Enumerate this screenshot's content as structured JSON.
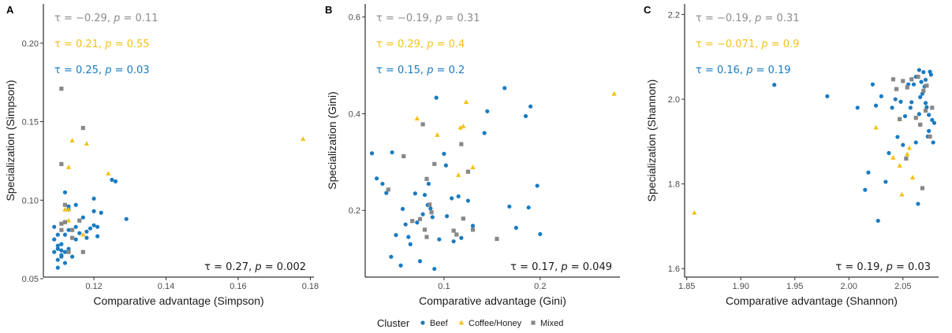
{
  "colors": {
    "Beef": "#1a7bc1",
    "Coffee/Honey": "#f2c218",
    "Mixed": "#888888",
    "stat_gray": "#8c8c8c",
    "stat_black": "#1a1a1a"
  },
  "legend": {
    "title": "Cluster",
    "items": [
      {
        "label": "Beef",
        "shape": "circle"
      },
      {
        "label": "Coffee/Honey",
        "shape": "triangle"
      },
      {
        "label": "Mixed",
        "shape": "square"
      }
    ],
    "placement": "bottom"
  },
  "chart_data": [
    {
      "type": "scatter",
      "panel": "A",
      "xlabel": "Comparative advantage (Simpson)",
      "ylabel": "Specialization (Simpson)",
      "xlim": [
        0.106,
        0.181
      ],
      "ylim": [
        0.051,
        0.225
      ],
      "xticks": [
        "0.12",
        "0.14",
        "0.16",
        "0.18"
      ],
      "yticks": [
        "0.05",
        "0.10",
        "0.15",
        "0.20"
      ],
      "stats": [
        {
          "cluster": "Mixed",
          "tau": "−0.29",
          "p": "0.11"
        },
        {
          "cluster": "Coffee/Honey",
          "tau": "0.21",
          "p": "0.55"
        },
        {
          "cluster": "Beef",
          "tau": "0.25",
          "p": "0.03"
        }
      ],
      "overall": {
        "tau": "0.27",
        "p": "0.002"
      },
      "series": [
        {
          "name": "Beef",
          "points": [
            [
              0.109,
              0.083
            ],
            [
              0.109,
              0.075
            ],
            [
              0.109,
              0.067
            ],
            [
              0.11,
              0.071
            ],
            [
              0.11,
              0.078
            ],
            [
              0.11,
              0.062
            ],
            [
              0.11,
              0.069
            ],
            [
              0.11,
              0.057
            ],
            [
              0.111,
              0.064
            ],
            [
              0.111,
              0.065
            ],
            [
              0.111,
              0.072
            ],
            [
              0.111,
              0.068
            ],
            [
              0.112,
              0.06
            ],
            [
              0.112,
              0.067
            ],
            [
              0.112,
              0.078
            ],
            [
              0.112,
              0.086
            ],
            [
              0.112,
              0.105
            ],
            [
              0.113,
              0.094
            ],
            [
              0.113,
              0.096
            ],
            [
              0.113,
              0.081
            ],
            [
              0.113,
              0.069
            ],
            [
              0.114,
              0.064
            ],
            [
              0.115,
              0.097
            ],
            [
              0.115,
              0.083
            ],
            [
              0.115,
              0.075
            ],
            [
              0.116,
              0.079
            ],
            [
              0.117,
              0.089
            ],
            [
              0.118,
              0.076
            ],
            [
              0.118,
              0.08
            ],
            [
              0.119,
              0.082
            ],
            [
              0.12,
              0.101
            ],
            [
              0.12,
              0.093
            ],
            [
              0.12,
              0.084
            ],
            [
              0.121,
              0.077
            ],
            [
              0.121,
              0.083
            ],
            [
              0.122,
              0.092
            ],
            [
              0.125,
              0.113
            ],
            [
              0.126,
              0.112
            ],
            [
              0.129,
              0.088
            ]
          ]
        },
        {
          "name": "Coffee/Honey",
          "points": [
            [
              0.112,
              0.094
            ],
            [
              0.113,
              0.087
            ],
            [
              0.113,
              0.094
            ],
            [
              0.113,
              0.121
            ],
            [
              0.114,
              0.138
            ],
            [
              0.117,
              0.078
            ],
            [
              0.118,
              0.136
            ],
            [
              0.124,
              0.117
            ],
            [
              0.178,
              0.139
            ]
          ]
        },
        {
          "name": "Mixed",
          "points": [
            [
              0.111,
              0.171
            ],
            [
              0.111,
              0.123
            ],
            [
              0.111,
              0.085
            ],
            [
              0.111,
              0.081
            ],
            [
              0.112,
              0.086
            ],
            [
              0.112,
              0.097
            ],
            [
              0.113,
              0.067
            ],
            [
              0.114,
              0.076
            ],
            [
              0.114,
              0.081
            ],
            [
              0.116,
              0.087
            ],
            [
              0.117,
              0.146
            ],
            [
              0.117,
              0.067
            ]
          ]
        }
      ]
    },
    {
      "type": "scatter",
      "panel": "B",
      "xlabel": "Comparative advantage (Gini)",
      "ylabel": "Specialization (Gini)",
      "xlim": [
        0.018,
        0.283
      ],
      "ylim": [
        0.062,
        0.627
      ],
      "xticks": [
        "0.1",
        "0.2"
      ],
      "yticks": [
        "0.2",
        "0.4",
        "0.6"
      ],
      "stats": [
        {
          "cluster": "Mixed",
          "tau": "−0.19",
          "p": "0.31"
        },
        {
          "cluster": "Coffee/Honey",
          "tau": "0.29",
          "p": "0.4"
        },
        {
          "cluster": "Beef",
          "tau": "0.15",
          "p": "0.2"
        }
      ],
      "overall": {
        "tau": "0.17",
        "p": "0.049"
      },
      "series": [
        {
          "name": "Beef",
          "points": [
            [
              0.025,
              0.318
            ],
            [
              0.03,
              0.266
            ],
            [
              0.036,
              0.255
            ],
            [
              0.04,
              0.236
            ],
            [
              0.045,
              0.104
            ],
            [
              0.046,
              0.32
            ],
            [
              0.05,
              0.149
            ],
            [
              0.055,
              0.086
            ],
            [
              0.057,
              0.203
            ],
            [
              0.06,
              0.171
            ],
            [
              0.063,
              0.145
            ],
            [
              0.065,
              0.13
            ],
            [
              0.07,
              0.235
            ],
            [
              0.072,
              0.175
            ],
            [
              0.075,
              0.095
            ],
            [
              0.078,
              0.192
            ],
            [
              0.08,
              0.232
            ],
            [
              0.083,
              0.211
            ],
            [
              0.084,
              0.255
            ],
            [
              0.086,
              0.204
            ],
            [
              0.088,
              0.186
            ],
            [
              0.09,
              0.079
            ],
            [
              0.092,
              0.433
            ],
            [
              0.095,
              0.14
            ],
            [
              0.1,
              0.317
            ],
            [
              0.102,
              0.293
            ],
            [
              0.103,
              0.188
            ],
            [
              0.108,
              0.225
            ],
            [
              0.11,
              0.136
            ],
            [
              0.115,
              0.229
            ],
            [
              0.118,
              0.143
            ],
            [
              0.125,
              0.22
            ],
            [
              0.13,
              0.168
            ],
            [
              0.142,
              0.36
            ],
            [
              0.145,
              0.405
            ],
            [
              0.163,
              0.453
            ],
            [
              0.168,
              0.208
            ],
            [
              0.175,
              0.164
            ],
            [
              0.185,
              0.395
            ],
            [
              0.188,
              0.206
            ],
            [
              0.19,
              0.415
            ],
            [
              0.197,
              0.251
            ],
            [
              0.2,
              0.151
            ]
          ]
        },
        {
          "name": "Coffee/Honey",
          "points": [
            [
              0.072,
              0.39
            ],
            [
              0.093,
              0.356
            ],
            [
              0.115,
              0.273
            ],
            [
              0.117,
              0.371
            ],
            [
              0.12,
              0.374
            ],
            [
              0.123,
              0.424
            ],
            [
              0.13,
              0.289
            ],
            [
              0.277,
              0.441
            ]
          ]
        },
        {
          "name": "Mixed",
          "points": [
            [
              0.042,
              0.243
            ],
            [
              0.058,
              0.312
            ],
            [
              0.067,
              0.178
            ],
            [
              0.075,
              0.182
            ],
            [
              0.078,
              0.378
            ],
            [
              0.08,
              0.16
            ],
            [
              0.082,
              0.265
            ],
            [
              0.082,
              0.145
            ],
            [
              0.085,
              0.212
            ],
            [
              0.087,
              0.196
            ],
            [
              0.09,
              0.296
            ],
            [
              0.11,
              0.158
            ],
            [
              0.113,
              0.15
            ],
            [
              0.118,
              0.337
            ],
            [
              0.12,
              0.183
            ],
            [
              0.125,
              0.28
            ],
            [
              0.13,
              0.16
            ],
            [
              0.155,
              0.141
            ]
          ]
        }
      ]
    },
    {
      "type": "scatter",
      "panel": "C",
      "xlabel": "Comparative advantage (Shannon)",
      "ylabel": "Specialization (Shannon)",
      "xlim": [
        1.848,
        2.083
      ],
      "ylim": [
        1.58,
        2.225
      ],
      "xticks": [
        "1.85",
        "1.90",
        "1.95",
        "2.00",
        "2.05"
      ],
      "yticks": [
        "1.6",
        "1.8",
        "2.0",
        "2.2"
      ],
      "stats": [
        {
          "cluster": "Mixed",
          "tau": "−0.19",
          "p": "0.31"
        },
        {
          "cluster": "Coffee/Honey",
          "tau": "−0.071",
          "p": "0.9"
        },
        {
          "cluster": "Beef",
          "tau": "0.16",
          "p": "0.19"
        }
      ],
      "overall": {
        "tau": "0.19",
        "p": "0.03"
      },
      "series": [
        {
          "name": "Beef",
          "points": [
            [
              1.931,
              2.034
            ],
            [
              1.98,
              2.007
            ],
            [
              2.008,
              1.98
            ],
            [
              2.015,
              1.786
            ],
            [
              2.018,
              1.827
            ],
            [
              2.022,
              2.035
            ],
            [
              2.025,
              1.985
            ],
            [
              2.027,
              1.713
            ],
            [
              2.03,
              2.007
            ],
            [
              2.034,
              1.805
            ],
            [
              2.037,
              1.873
            ],
            [
              2.04,
              1.98
            ],
            [
              2.043,
              2.0
            ],
            [
              2.045,
              1.911
            ],
            [
              2.048,
              1.994
            ],
            [
              2.05,
              1.892
            ],
            [
              2.052,
              1.96
            ],
            [
              2.055,
              2.035
            ],
            [
              2.057,
              1.98
            ],
            [
              2.058,
              1.993
            ],
            [
              2.06,
              2.035
            ],
            [
              2.062,
              1.898
            ],
            [
              2.062,
              2.053
            ],
            [
              2.064,
              1.753
            ],
            [
              2.065,
              1.965
            ],
            [
              2.065,
              2.069
            ],
            [
              2.066,
              2.005
            ],
            [
              2.066,
              1.94
            ],
            [
              2.067,
              2.041
            ],
            [
              2.068,
              2.013
            ],
            [
              2.069,
              2.064
            ],
            [
              2.07,
              2.03
            ],
            [
              2.071,
              2.046
            ],
            [
              2.071,
              1.991
            ],
            [
              2.072,
              1.981
            ],
            [
              2.073,
              1.912
            ],
            [
              2.074,
              1.963
            ],
            [
              2.074,
              1.925
            ],
            [
              2.075,
              2.065
            ],
            [
              2.076,
              2.058
            ],
            [
              2.077,
              1.951
            ],
            [
              2.078,
              1.898
            ],
            [
              2.079,
              1.944
            ]
          ]
        },
        {
          "name": "Coffee/Honey",
          "points": [
            [
              1.857,
              1.732
            ],
            [
              2.025,
              1.933
            ],
            [
              2.041,
              1.862
            ],
            [
              2.047,
              1.843
            ],
            [
              2.047,
              1.953
            ],
            [
              2.054,
              1.87
            ],
            [
              2.056,
              1.885
            ],
            [
              2.059,
              1.815
            ],
            [
              2.049,
              1.775
            ]
          ]
        },
        {
          "name": "Mixed",
          "points": [
            [
              2.041,
              2.047
            ],
            [
              2.044,
              2.024
            ],
            [
              2.047,
              1.953
            ],
            [
              2.05,
              2.043
            ],
            [
              2.053,
              1.86
            ],
            [
              2.054,
              2.028
            ],
            [
              2.058,
              2.047
            ],
            [
              2.062,
              1.956
            ],
            [
              2.064,
              2.053
            ],
            [
              2.066,
              1.94
            ],
            [
              2.068,
              1.79
            ],
            [
              2.069,
              2.02
            ],
            [
              2.071,
              1.973
            ],
            [
              2.072,
              2.032
            ],
            [
              2.075,
              1.912
            ],
            [
              2.077,
              1.98
            ]
          ]
        }
      ]
    }
  ]
}
